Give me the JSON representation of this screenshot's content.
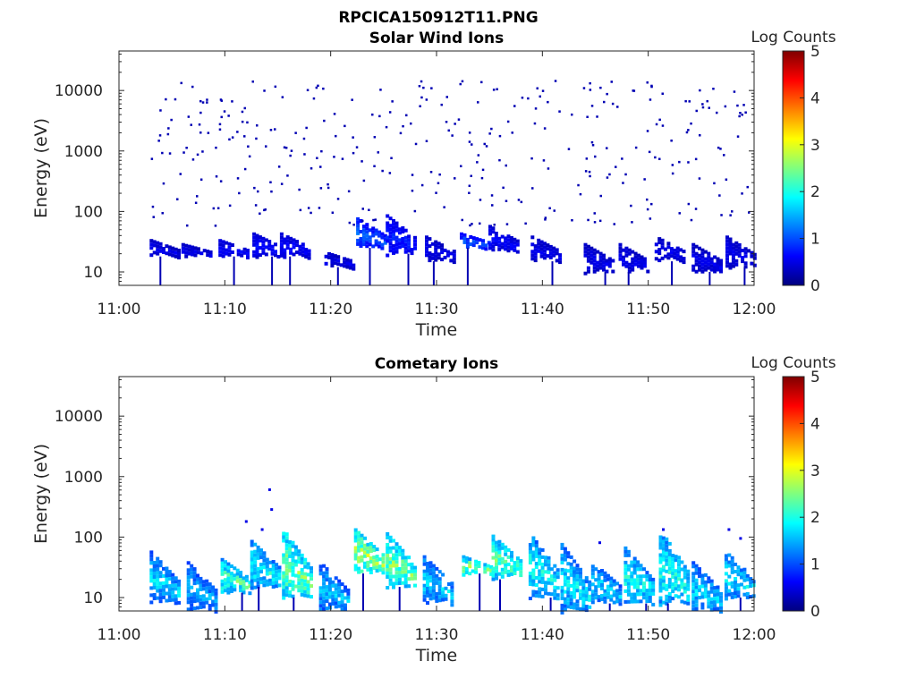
{
  "figure": {
    "title": "RPCICA150912T11.PNG"
  },
  "chart_data": [
    {
      "type": "heatmap",
      "title": "Solar Wind Ions",
      "xlabel": "Time",
      "ylabel": "Energy (eV)",
      "x_ticks": [
        "11:00",
        "11:10",
        "11:20",
        "11:30",
        "11:40",
        "11:50",
        "12:00"
      ],
      "x_range_minutes": [
        0,
        60
      ],
      "y_scale": "log",
      "y_ticks": [
        10,
        100,
        1000,
        10000
      ],
      "y_tick_labels": [
        "10",
        "100",
        "1000",
        "10000"
      ],
      "y_range": [
        6,
        45000
      ],
      "colorbar": {
        "label": "Log Counts",
        "range": [
          0,
          5
        ],
        "ticks": [
          "0",
          "1",
          "2",
          "3",
          "4",
          "5"
        ],
        "colormap": "jet"
      },
      "blobs": [
        {
          "t": 4.5,
          "e_low": 18,
          "e_high": 35,
          "level": 0.5
        },
        {
          "t": 7.5,
          "e_low": 18,
          "e_high": 30,
          "level": 0.5
        },
        {
          "t": 11.0,
          "e_low": 18,
          "e_high": 35,
          "level": 0.6
        },
        {
          "t": 14.2,
          "e_low": 18,
          "e_high": 45,
          "level": 0.6
        },
        {
          "t": 16.8,
          "e_low": 18,
          "e_high": 45,
          "level": 0.6
        },
        {
          "t": 21.0,
          "e_low": 12,
          "e_high": 22,
          "level": 0.5
        },
        {
          "t": 24.0,
          "e_low": 25,
          "e_high": 80,
          "level": 1.0
        },
        {
          "t": 26.8,
          "e_low": 20,
          "e_high": 90,
          "level": 0.7
        },
        {
          "t": 30.5,
          "e_low": 15,
          "e_high": 40,
          "level": 0.5
        },
        {
          "t": 33.8,
          "e_low": 25,
          "e_high": 45,
          "level": 1.0
        },
        {
          "t": 36.5,
          "e_low": 22,
          "e_high": 60,
          "level": 0.6
        },
        {
          "t": 40.5,
          "e_low": 15,
          "e_high": 40,
          "level": 0.5
        },
        {
          "t": 45.5,
          "e_low": 10,
          "e_high": 30,
          "level": 0.5
        },
        {
          "t": 48.8,
          "e_low": 10,
          "e_high": 30,
          "level": 0.5
        },
        {
          "t": 52.2,
          "e_low": 15,
          "e_high": 40,
          "level": 0.5
        },
        {
          "t": 55.7,
          "e_low": 10,
          "e_high": 30,
          "level": 0.5
        },
        {
          "t": 58.9,
          "e_low": 12,
          "e_high": 40,
          "level": 0.5
        }
      ],
      "scatter_energy_range": [
        60,
        15000
      ]
    },
    {
      "type": "heatmap",
      "title": "Cometary Ions",
      "xlabel": "Time",
      "ylabel": "Energy (eV)",
      "x_ticks": [
        "11:00",
        "11:10",
        "11:20",
        "11:30",
        "11:40",
        "11:50",
        "12:00"
      ],
      "x_range_minutes": [
        0,
        60
      ],
      "y_scale": "log",
      "y_ticks": [
        10,
        100,
        1000,
        10000
      ],
      "y_tick_labels": [
        "10",
        "100",
        "1000",
        "10000"
      ],
      "y_range": [
        6,
        45000
      ],
      "colorbar": {
        "label": "Log Counts",
        "range": [
          0,
          5
        ],
        "ticks": [
          "0",
          "1",
          "2",
          "3",
          "4",
          "5"
        ],
        "colormap": "jet"
      },
      "blobs": [
        {
          "t": 4.5,
          "e_low": 8,
          "e_high": 60,
          "level": 1.6
        },
        {
          "t": 8.0,
          "e_low": 6,
          "e_high": 40,
          "level": 1.4
        },
        {
          "t": 11.2,
          "e_low": 12,
          "e_high": 45,
          "level": 2.1
        },
        {
          "t": 14.0,
          "e_low": 15,
          "e_high": 90,
          "level": 1.8
        },
        {
          "t": 17.0,
          "e_low": 10,
          "e_high": 140,
          "level": 2.3
        },
        {
          "t": 20.5,
          "e_low": 6,
          "e_high": 40,
          "level": 1.5
        },
        {
          "t": 23.8,
          "e_low": 25,
          "e_high": 140,
          "level": 2.5
        },
        {
          "t": 26.8,
          "e_low": 15,
          "e_high": 120,
          "level": 2.3
        },
        {
          "t": 30.3,
          "e_low": 8,
          "e_high": 50,
          "level": 1.6
        },
        {
          "t": 34.0,
          "e_low": 25,
          "e_high": 50,
          "level": 2.4
        },
        {
          "t": 36.8,
          "e_low": 20,
          "e_high": 110,
          "level": 2.2
        },
        {
          "t": 40.3,
          "e_low": 10,
          "e_high": 120,
          "level": 1.8
        },
        {
          "t": 43.3,
          "e_low": 6,
          "e_high": 80,
          "level": 1.7
        },
        {
          "t": 46.2,
          "e_low": 8,
          "e_high": 40,
          "level": 1.6
        },
        {
          "t": 49.3,
          "e_low": 8,
          "e_high": 70,
          "level": 1.8
        },
        {
          "t": 52.6,
          "e_low": 8,
          "e_high": 140,
          "level": 1.9
        },
        {
          "t": 55.7,
          "e_low": 6,
          "e_high": 40,
          "level": 1.6
        },
        {
          "t": 58.8,
          "e_low": 10,
          "e_high": 60,
          "level": 1.7
        }
      ],
      "isolated_points": [
        {
          "t": 11.9,
          "e": 190
        },
        {
          "t": 13.4,
          "e": 140
        },
        {
          "t": 14.1,
          "e": 640
        },
        {
          "t": 14.3,
          "e": 300
        },
        {
          "t": 45.3,
          "e": 85
        },
        {
          "t": 51.3,
          "e": 140
        },
        {
          "t": 57.5,
          "e": 140
        },
        {
          "t": 58.6,
          "e": 100
        }
      ]
    }
  ]
}
